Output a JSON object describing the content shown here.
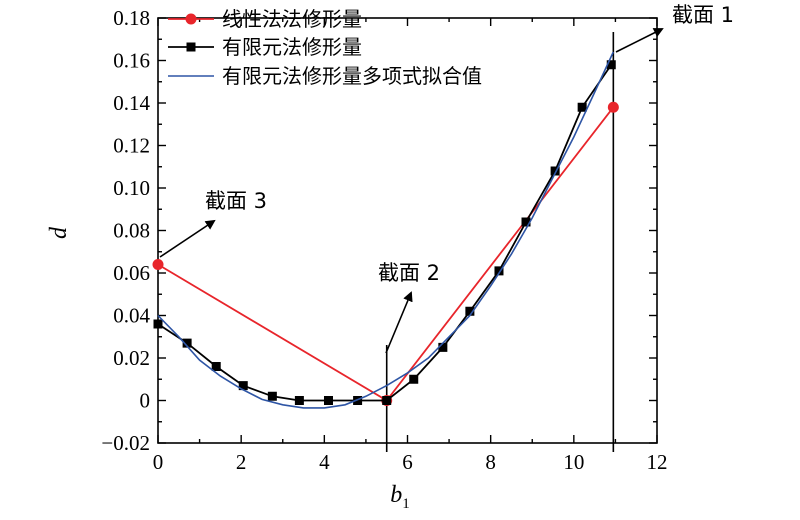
{
  "chart_data": {
    "type": "line",
    "xlabel": "b",
    "xlabel_sub": "1",
    "ylabel": "d",
    "xlim": [
      0,
      12
    ],
    "ylim": [
      -0.02,
      0.18
    ],
    "xticks": [
      0,
      2,
      4,
      6,
      8,
      10,
      12
    ],
    "yticks": [
      -0.02,
      0,
      0.02,
      0.04,
      0.06,
      0.08,
      0.1,
      0.12,
      0.14,
      0.16,
      0.18
    ],
    "xtick_labels": [
      "0",
      "2",
      "4",
      "6",
      "8",
      "10",
      "12"
    ],
    "ytick_labels": [
      "−0.02",
      "0",
      "0.02",
      "0.04",
      "0.06",
      "0.08",
      "0.10",
      "0.12",
      "0.14",
      "0.16",
      "0.18"
    ],
    "grid": false,
    "legend_position": "top-left",
    "series": [
      {
        "name": "线性法法修形量",
        "color": "#e8252b",
        "marker": "circle",
        "x": [
          0,
          5.5,
          10.95
        ],
        "y": [
          0.064,
          0.0,
          0.138
        ]
      },
      {
        "name": "有限元法修形量",
        "color": "#000000",
        "marker": "square",
        "x": [
          0,
          0.7,
          1.4,
          2.05,
          2.75,
          3.4,
          4.1,
          4.8,
          5.5,
          6.15,
          6.85,
          7.5,
          8.2,
          8.85,
          9.55,
          10.2,
          10.9
        ],
        "y": [
          0.036,
          0.027,
          0.016,
          0.007,
          0.002,
          0.0,
          0.0,
          0.0,
          0.0,
          0.01,
          0.025,
          0.042,
          0.061,
          0.084,
          0.108,
          0.138,
          0.158
        ]
      },
      {
        "name": "有限元法修形量多项式拟合值",
        "color": "#2e55a5",
        "marker": "none",
        "x": [
          0,
          0.5,
          1,
          1.5,
          2,
          2.5,
          3,
          3.5,
          4,
          4.5,
          5,
          5.5,
          6,
          6.5,
          7,
          7.5,
          8,
          8.5,
          9,
          9.5,
          10,
          10.5,
          10.95
        ],
        "y": [
          0.04,
          0.03,
          0.019,
          0.0115,
          0.0055,
          0.0005,
          -0.002,
          -0.0035,
          -0.0035,
          -0.002,
          0.002,
          0.007,
          0.013,
          0.02,
          0.03,
          0.04,
          0.054,
          0.069,
          0.086,
          0.105,
          0.124,
          0.145,
          0.164
        ]
      }
    ],
    "annotations": [
      {
        "text": "截面 1",
        "x": 10.95,
        "y": 0.16
      },
      {
        "text": "截面 2",
        "x": 5.5,
        "y": 0.025
      },
      {
        "text": "截面 3",
        "x": 0.0,
        "y": 0.064
      }
    ],
    "section_lines_x": [
      5.5,
      10.95
    ]
  }
}
